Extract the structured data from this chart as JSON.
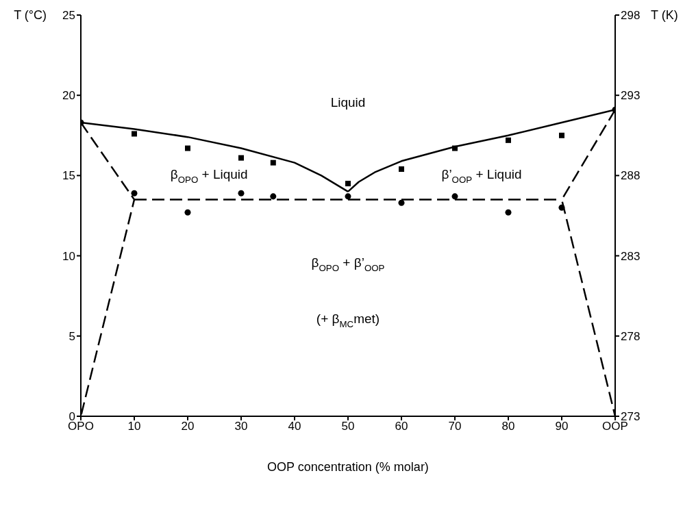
{
  "chart_data": {
    "type": "scatter",
    "xlabel": "OOP concentration (% molar)",
    "ylabel": "T (°C)",
    "y2label": "T (K)",
    "xlim": [
      0,
      100
    ],
    "xticks": [
      {
        "value": 0,
        "label": "OPO"
      },
      10,
      20,
      30,
      40,
      50,
      60,
      70,
      80,
      90,
      {
        "value": 100,
        "label": "OOP"
      }
    ],
    "ylim": [
      0,
      25
    ],
    "yticks": [
      0,
      5,
      10,
      15,
      20,
      25
    ],
    "y2lim": [
      273,
      298
    ],
    "y2ticks": [
      273,
      278,
      283,
      288,
      293,
      298
    ],
    "grid": false,
    "series": [
      {
        "marker": "circle",
        "color": "#000000",
        "x": [
          0,
          10,
          20,
          30,
          36,
          50,
          60,
          70,
          80,
          90,
          100
        ],
        "values": [
          18.3,
          13.9,
          12.7,
          13.9,
          13.7,
          13.7,
          13.3,
          13.7,
          12.7,
          13.0,
          19.1
        ]
      },
      {
        "marker": "square",
        "color": "#000000",
        "x": [
          10,
          20,
          30,
          36,
          50,
          60,
          70,
          80,
          90
        ],
        "values": [
          17.6,
          16.7,
          16.1,
          15.8,
          14.5,
          15.4,
          16.7,
          17.2,
          17.5
        ]
      },
      {
        "type": "line",
        "line_style": "solid",
        "color": "#000000",
        "x": [
          0,
          10,
          20,
          30,
          40,
          45,
          50
        ],
        "values": [
          18.3,
          17.9,
          17.4,
          16.7,
          15.8,
          15.0,
          14.0
        ]
      },
      {
        "type": "line",
        "line_style": "solid",
        "color": "#000000",
        "x": [
          50,
          52,
          55,
          60,
          70,
          80,
          90,
          100
        ],
        "values": [
          14.0,
          14.6,
          15.2,
          15.9,
          16.8,
          17.5,
          18.3,
          19.1
        ]
      },
      {
        "type": "line",
        "line_style": "dashed",
        "color": "#000000",
        "x": [
          10,
          90
        ],
        "values": [
          13.5,
          13.5
        ]
      },
      {
        "type": "line",
        "line_style": "dashed",
        "color": "#000000",
        "x": [
          0,
          10,
          0
        ],
        "values": [
          18.3,
          13.5,
          0
        ]
      },
      {
        "type": "line",
        "line_style": "dashed",
        "color": "#000000",
        "x": [
          100,
          90,
          100
        ],
        "values": [
          19.1,
          13.5,
          0
        ]
      }
    ],
    "annotations": [
      "Liquid",
      "β$_{OPO}$ + Liquid",
      "β’$_{OOP}$ + Liquid",
      "β$_{OPO}$ + β’$_{OOP}$",
      "(+ β$_{MC}$met)"
    ]
  }
}
